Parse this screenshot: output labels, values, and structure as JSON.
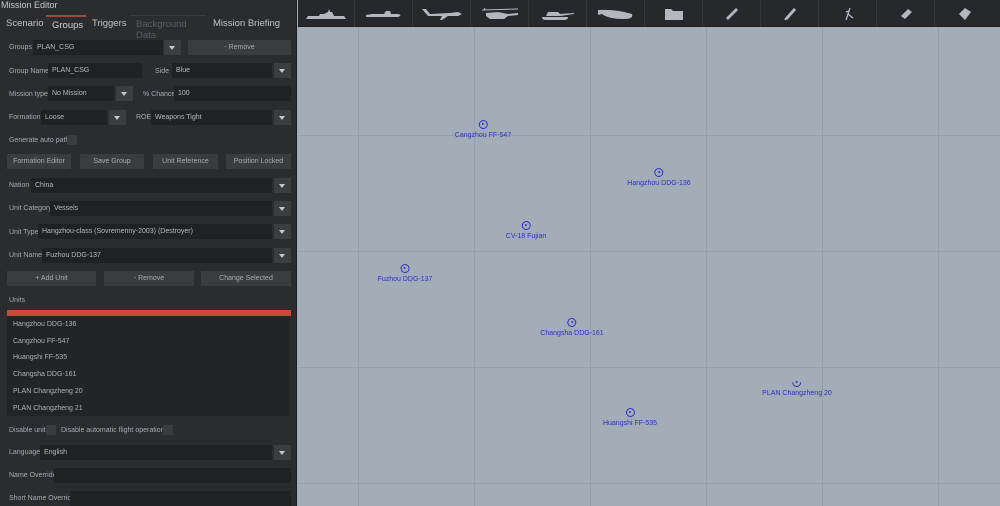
{
  "window": {
    "title": "Mission Editor"
  },
  "tabs": [
    {
      "label": "Scenario"
    },
    {
      "label": "Groups",
      "active": true
    },
    {
      "label": "Triggers"
    },
    {
      "label": "Background Data",
      "disabled": true
    },
    {
      "label": "Mission Briefing"
    }
  ],
  "form": {
    "groups_label": "Groups",
    "groups_value": "PLAN_CSG",
    "remove_group": "- Remove",
    "group_name_label": "Group Name",
    "group_name_value": "PLAN_CSG",
    "side_label": "Side",
    "side_value": "Blue",
    "mission_type_label": "Mission type",
    "mission_type_value": "No Mission",
    "chance_label": "% Chance",
    "chance_value": "100",
    "formation_label": "Formation",
    "formation_value": "Loose",
    "roe_label": "ROE",
    "roe_value": "Weapons Tight",
    "auto_path_label": "Generate auto path",
    "formation_editor": "Formation Editor",
    "save_group": "Save Group",
    "unit_reference": "Unit Reference",
    "position_locked": "Position Locked",
    "nation_label": "Nation",
    "nation_value": "China",
    "unit_category_label": "Unit Category",
    "unit_category_value": "Vessels",
    "unit_type_label": "Unit Type",
    "unit_type_value": "Hangzhou-class (Sovremenny-2003) (Destroyer)",
    "unit_name_label": "Unit Name",
    "unit_name_value": "Fuzhou DDG-137",
    "add_unit": "+ Add Unit",
    "remove_unit": "- Remove",
    "change_selected": "Change Selected",
    "units_label": "Units",
    "units": [
      "Hangzhou DDG-136",
      "Cangzhou FF-547",
      "Huangshi FF-535",
      "Changsha DDG-161",
      "PLAN Changzheng 20",
      "PLAN Changzheng 21"
    ],
    "disable_unit_label": "Disable unit",
    "disable_flight_label": "Disable automatic flight operations",
    "language_label": "Language",
    "language_value": "English",
    "name_override_label": "Name Override",
    "short_name_override_label": "Short Name Override"
  },
  "toolbar": {
    "icons": [
      "ship-icon",
      "submarine-icon",
      "airplane-icon",
      "helicopter-icon",
      "tank-icon",
      "airship-icon",
      "folder-icon",
      "ruler-icon",
      "pen-icon",
      "compass-icon",
      "eraser-icon",
      "fill-icon"
    ]
  },
  "map": {
    "unit_color": "#2b2fc4",
    "selected_color": "#cc4a35",
    "units": [
      {
        "name": "Cangzhou FF-547"
      },
      {
        "name": "Hangzhou DDG-136"
      },
      {
        "name": "CV-18 Fujian"
      },
      {
        "name": "Fuzhou DDG-137"
      },
      {
        "name": "Changsha DDG-161"
      },
      {
        "name": "PLAN Changzheng 20"
      },
      {
        "name": "Huangshi FF-535"
      }
    ]
  }
}
